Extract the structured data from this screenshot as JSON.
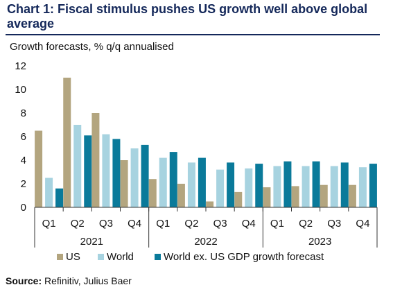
{
  "header": {
    "title": "Chart 1: Fiscal stimulus pushes US growth well above global average",
    "subtitle": "Growth forecasts, % q/q annualised"
  },
  "footer": {
    "source_label": "Source:",
    "source_text": "Refinitiv, Julius Baer"
  },
  "colors": {
    "US": "#b3a57f",
    "World": "#a7d3e0",
    "World ex. US GDP growth forecast": "#0a7a9a"
  },
  "chart_data": {
    "type": "bar",
    "title": "Chart 1: Fiscal stimulus pushes US growth well above global average",
    "ylabel": "Growth forecasts, % q/q annualised",
    "ylim": [
      0,
      12
    ],
    "yticks": [
      0,
      2,
      4,
      6,
      8,
      10,
      12
    ],
    "grid": false,
    "legend_position": "bottom",
    "categories": [
      "Q1",
      "Q2",
      "Q3",
      "Q4",
      "Q1",
      "Q2",
      "Q3",
      "Q4",
      "Q1",
      "Q2",
      "Q3",
      "Q4"
    ],
    "groups": [
      {
        "label": "2021",
        "start": 0,
        "end": 4
      },
      {
        "label": "2022",
        "start": 4,
        "end": 8
      },
      {
        "label": "2023",
        "start": 8,
        "end": 12
      }
    ],
    "series": [
      {
        "name": "US",
        "color": "#b3a57f",
        "values": [
          6.5,
          11.0,
          8.0,
          4.0,
          2.4,
          2.0,
          0.5,
          1.3,
          1.7,
          1.8,
          1.9,
          1.9
        ]
      },
      {
        "name": "World",
        "color": "#a7d3e0",
        "values": [
          2.5,
          7.0,
          6.2,
          5.0,
          4.2,
          3.8,
          3.2,
          3.3,
          3.5,
          3.5,
          3.5,
          3.4
        ]
      },
      {
        "name": "World ex. US GDP growth forecast",
        "color": "#0a7a9a",
        "values": [
          1.6,
          6.1,
          5.8,
          5.3,
          4.7,
          4.2,
          3.8,
          3.7,
          3.9,
          3.9,
          3.8,
          3.7
        ]
      }
    ]
  }
}
